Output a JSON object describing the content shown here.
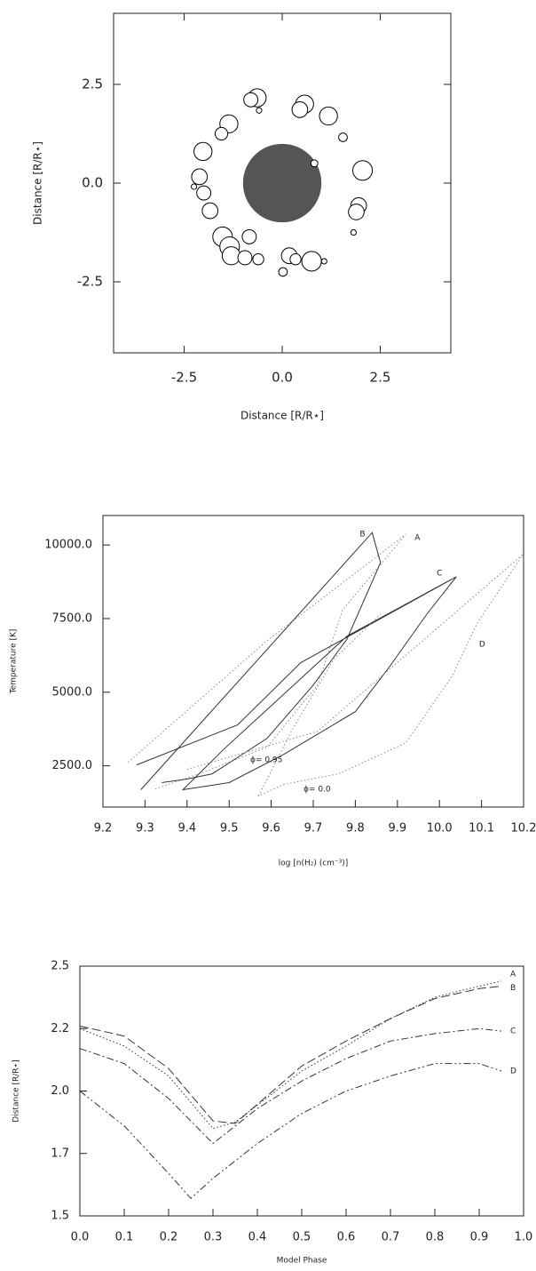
{
  "chart_data": [
    {
      "type": "bubble",
      "xlabel": "Distance [R/R⋆]",
      "ylabel": "Distance [R/R⋆]",
      "xlim": [
        -4.3,
        4.3
      ],
      "ylim": [
        -4.3,
        4.3
      ],
      "xticks": [
        -2.5,
        {
          "value": 0,
          "label": "0.0"
        },
        2.5
      ],
      "yticks": [
        -2.5,
        {
          "value": 0,
          "label": "0.0"
        },
        2.5
      ],
      "central_star": {
        "x": 0,
        "y": 0,
        "radius": 1.0,
        "color": "#555555"
      },
      "color": "#000000",
      "x": [
        -0.64,
        -0.8,
        0.57,
        0.45,
        1.18,
        -1.36,
        -1.55,
        1.55,
        -2.02,
        2.05,
        -2.11,
        -2.0,
        -2.25,
        1.95,
        1.89,
        -1.84,
        0.82,
        -1.52,
        -0.84,
        -1.34,
        -1.3,
        -0.95,
        -0.61,
        0.18,
        0.34,
        0.75,
        0.02,
        1.82,
        1.07,
        -0.59
      ],
      "values": [
        2.16,
        2.11,
        2.0,
        1.86,
        1.7,
        1.5,
        1.25,
        1.16,
        0.8,
        0.32,
        0.16,
        -0.25,
        -0.09,
        -0.57,
        -0.73,
        -0.7,
        0.5,
        -1.36,
        -1.36,
        -1.61,
        -1.84,
        -1.89,
        -1.93,
        -1.84,
        -1.93,
        -1.98,
        -2.25,
        -1.25,
        -1.98,
        1.84
      ],
      "sizes": [
        0.23,
        0.18,
        0.23,
        0.2,
        0.23,
        0.23,
        0.16,
        0.11,
        0.23,
        0.25,
        0.2,
        0.18,
        0.07,
        0.2,
        0.2,
        0.2,
        0.09,
        0.25,
        0.18,
        0.25,
        0.23,
        0.18,
        0.14,
        0.2,
        0.14,
        0.25,
        0.11,
        0.07,
        0.07,
        0.07
      ]
    },
    {
      "type": "line",
      "xlabel": "log [n(H₂) (cm⁻³)]",
      "ylabel": "Temperature [K]",
      "xlim": [
        9.2,
        10.2
      ],
      "ylim": [
        1100,
        11000
      ],
      "xticks": [
        9.2,
        9.3,
        9.4,
        9.5,
        9.6,
        9.7,
        9.8,
        9.9,
        {
          "value": 10,
          "label": "10.0"
        },
        10.1,
        10.2
      ],
      "yticks": [
        {
          "value": 2500,
          "label": "2500.0"
        },
        {
          "value": 5000,
          "label": "5000.0"
        },
        {
          "value": 7500,
          "label": "7500.0"
        },
        {
          "value": 10000,
          "label": "10000.0"
        }
      ],
      "annotations": [
        {
          "text": "ϕ= 0.95"
        },
        {
          "text": "ϕ= 0.0"
        }
      ],
      "series": [
        {
          "name": "A",
          "color": "#8a8a8a",
          "style": "dotted",
          "x": [
            9.26,
            9.59,
            9.92,
            9.77,
            9.71,
            9.59,
            9.44,
            9.32
          ],
          "values": [
            2620,
            6750,
            10360,
            7800,
            5240,
            3130,
            2290,
            1690
          ]
        },
        {
          "name": "B",
          "color": "#333333",
          "style": "solid",
          "x": [
            9.29,
            9.84,
            9.86,
            9.78,
            9.7,
            9.59,
            9.46,
            9.4,
            9.34
          ],
          "values": [
            1690,
            10420,
            9400,
            6800,
            5240,
            3430,
            2230,
            2050,
            1930
          ]
        },
        {
          "name": "C",
          "color": "#333333",
          "style": "solid",
          "x": [
            9.28,
            9.52,
            9.67,
            10.04,
            9.97,
            9.88,
            9.8,
            9.63,
            9.5,
            9.39,
            9.49,
            9.62,
            9.78,
            10.04
          ],
          "values": [
            2530,
            3890,
            6000,
            8920,
            7650,
            5840,
            4340,
            2890,
            1930,
            1690,
            3100,
            4800,
            6900,
            8920
          ]
        },
        {
          "name": "D",
          "color": "#8a8a8a",
          "style": "dotted",
          "x": [
            9.4,
            9.71,
            10.2,
            10.09,
            10.03,
            9.92,
            9.76,
            9.63,
            9.57,
            9.65,
            9.75,
            9.86
          ],
          "values": [
            2380,
            3670,
            9700,
            7350,
            5540,
            3280,
            2230,
            1870,
            1480,
            3730,
            6140,
            7650
          ]
        }
      ]
    },
    {
      "type": "line",
      "xlabel": "Model Phase",
      "ylabel": "Distance [R/R⋆]",
      "xlim": [
        0,
        1
      ],
      "ylim": [
        1.5,
        2.5
      ],
      "xticks": [
        {
          "value": 0,
          "label": "0.0"
        },
        0.1,
        0.2,
        0.3,
        0.4,
        0.5,
        0.6,
        0.7,
        0.8,
        0.9,
        {
          "value": 1,
          "label": "1.0"
        }
      ],
      "yticks": [
        1.5,
        {
          "value": 1.75,
          "label": "1.7"
        },
        {
          "value": 2,
          "label": "2.0"
        },
        {
          "value": 2.25,
          "label": "2.2"
        },
        2.5
      ],
      "series": [
        {
          "name": "A",
          "color": "#333333",
          "style": "dotted",
          "x": [
            0,
            0.1,
            0.2,
            0.3,
            0.35,
            0.5,
            0.6,
            0.7,
            0.8,
            0.9,
            0.95
          ],
          "values": [
            2.25,
            2.18,
            2.06,
            1.85,
            1.875,
            2.08,
            2.18,
            2.29,
            2.375,
            2.42,
            2.44
          ]
        },
        {
          "name": "B",
          "color": "#333333",
          "style": "longdash",
          "x": [
            0,
            0.1,
            0.2,
            0.3,
            0.35,
            0.5,
            0.6,
            0.7,
            0.8,
            0.9,
            0.95
          ],
          "values": [
            2.26,
            2.22,
            2.09,
            1.88,
            1.87,
            2.1,
            2.2,
            2.29,
            2.37,
            2.41,
            2.42
          ]
        },
        {
          "name": "C",
          "color": "#333333",
          "style": "dashdot",
          "x": [
            0,
            0.1,
            0.2,
            0.3,
            0.4,
            0.5,
            0.6,
            0.7,
            0.8,
            0.9,
            0.95
          ],
          "values": [
            2.17,
            2.11,
            1.97,
            1.79,
            1.93,
            2.04,
            2.13,
            2.2,
            2.23,
            2.25,
            2.24
          ]
        },
        {
          "name": "D",
          "color": "#333333",
          "style": "dashdotdot",
          "x": [
            0,
            0.1,
            0.2,
            0.25,
            0.3,
            0.4,
            0.5,
            0.6,
            0.7,
            0.8,
            0.9,
            0.95
          ],
          "values": [
            2.0,
            1.86,
            1.67,
            1.57,
            1.65,
            1.79,
            1.91,
            2.0,
            2.06,
            2.11,
            2.11,
            2.08
          ]
        }
      ]
    }
  ]
}
